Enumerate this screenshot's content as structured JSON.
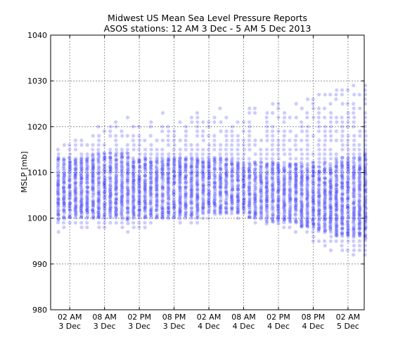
{
  "chart_data": {
    "type": "scatter",
    "title": "Midwest US Mean Sea Level Pressure Reports",
    "subtitle": "ASOS stations: 12 AM 3 Dec - 5 AM 5 Dec 2013",
    "ylabel": "MSLP [mb]",
    "xlabel": "",
    "ylim": [
      980,
      1040
    ],
    "xlim_hours": [
      -1.3,
      52.8
    ],
    "grid": true,
    "yticks": [
      980,
      990,
      1000,
      1010,
      1020,
      1030,
      1040
    ],
    "xticks": [
      {
        "hour": 2,
        "line1": "02 AM",
        "line2": "3 Dec"
      },
      {
        "hour": 8,
        "line1": "08 AM",
        "line2": "3 Dec"
      },
      {
        "hour": 14,
        "line1": "02 PM",
        "line2": "3 Dec"
      },
      {
        "hour": 20,
        "line1": "08 PM",
        "line2": "3 Dec"
      },
      {
        "hour": 26,
        "line1": "02 AM",
        "line2": "4 Dec"
      },
      {
        "hour": 32,
        "line1": "08 AM",
        "line2": "4 Dec"
      },
      {
        "hour": 38,
        "line1": "02 PM",
        "line2": "4 Dec"
      },
      {
        "hour": 44,
        "line1": "08 PM",
        "line2": "4 Dec"
      },
      {
        "hour": 50,
        "line1": "02 AM",
        "line2": "5 Dec"
      }
    ],
    "point_color": "#0000ff",
    "envelope": {
      "hours": [
        0,
        6,
        12,
        18,
        24,
        30,
        36,
        42,
        48,
        53
      ],
      "max": [
        1016,
        1020,
        1022,
        1023,
        1024,
        1024,
        1025,
        1026,
        1028,
        1030
      ],
      "min": [
        997,
        998,
        997,
        999,
        999,
        1000,
        998,
        996,
        992,
        991
      ],
      "core_max": [
        1013,
        1014,
        1014,
        1013,
        1013,
        1013,
        1012,
        1012,
        1013,
        1014
      ],
      "core_min": [
        999,
        1000,
        999,
        1000,
        1000,
        1001,
        999,
        998,
        996,
        995
      ]
    }
  }
}
